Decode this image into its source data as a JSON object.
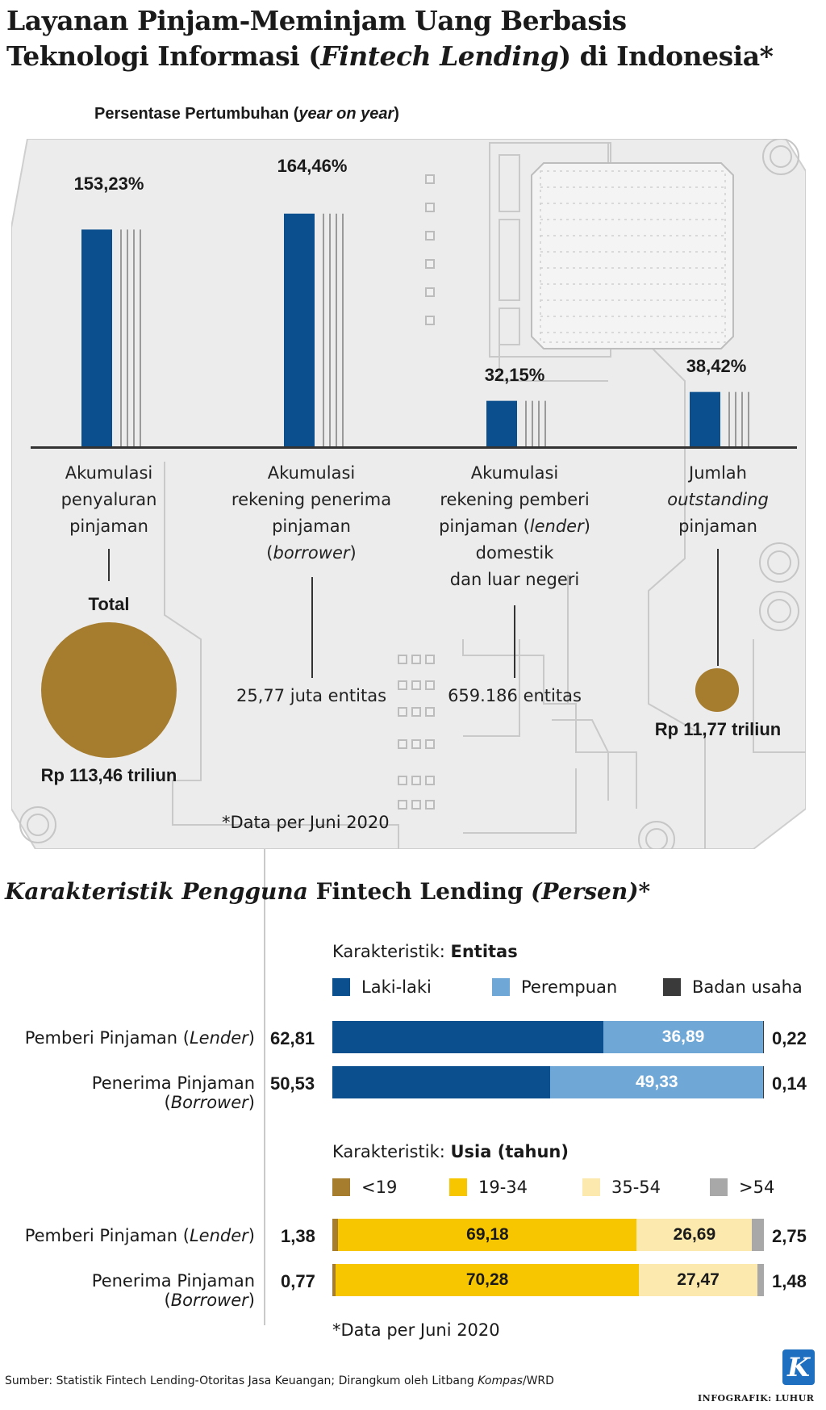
{
  "title": {
    "line1": "Layanan Pinjam-Meminjam Uang Berbasis",
    "line2_pre": "Teknologi Informasi (",
    "line2_italic": "Fintech Lending",
    "line2_post": ") di Indonesia*"
  },
  "chart_data": [
    {
      "type": "bar",
      "title": "Persentase Pertumbuhan (year on year)",
      "title_pre": "Persentase Pertumbuhan (",
      "title_italic": "year on year",
      "title_post": ")",
      "categories": [
        "Akumulasi penyaluran pinjaman",
        "Akumulasi rekening penerima pinjaman (borrower)",
        "Akumulasi rekening pemberi pinjaman (lender) domestik dan luar negeri",
        "Jumlah outstanding pinjaman"
      ],
      "values": [
        153.23,
        164.46,
        32.15,
        38.42
      ],
      "value_labels": [
        "153,23%",
        "164,46%",
        "32,15%",
        "38,42%"
      ],
      "ylim": [
        0,
        180
      ],
      "bar_color": "#0b4f8f"
    },
    {
      "type": "bar",
      "title": "Karakteristik: Entitas",
      "orientation": "horizontal-stacked",
      "categories": [
        "Pemberi Pinjaman (Lender)",
        "Penerima Pinjaman (Borrower)"
      ],
      "series": [
        {
          "name": "Laki-laki",
          "values": [
            62.81,
            50.53
          ],
          "labels": [
            "62,81",
            "50,53"
          ],
          "color": "#0b4f8f"
        },
        {
          "name": "Perempuan",
          "values": [
            36.89,
            49.33
          ],
          "labels": [
            "36,89",
            "49,33"
          ],
          "color": "#6fa7d6"
        },
        {
          "name": "Badan usaha",
          "values": [
            0.22,
            0.14
          ],
          "labels": [
            "0,22",
            "0,14"
          ],
          "color": "#3a3a3a"
        }
      ],
      "xlim": [
        0,
        100
      ]
    },
    {
      "type": "bar",
      "title": "Karakteristik: Usia (tahun)",
      "orientation": "horizontal-stacked",
      "categories": [
        "Pemberi Pinjaman (Lender)",
        "Penerima Pinjaman (Borrower)"
      ],
      "series": [
        {
          "name": "<19",
          "values": [
            1.38,
            0.77
          ],
          "labels": [
            "1,38",
            "0,77"
          ],
          "color": "#a67c2e"
        },
        {
          "name": "19-34",
          "values": [
            69.18,
            70.28
          ],
          "labels": [
            "69,18",
            "70,28"
          ],
          "color": "#f7c600"
        },
        {
          "name": "35-54",
          "values": [
            26.69,
            27.47
          ],
          "labels": [
            "26,69",
            "27,47"
          ],
          "color": "#fbe9ad"
        },
        {
          "name": ">54",
          "values": [
            2.75,
            1.48
          ],
          "labels": [
            "2,75",
            "1,48"
          ],
          "color": "#a8a8a8"
        }
      ],
      "xlim": [
        0,
        100
      ]
    }
  ],
  "growth": {
    "labels": [
      {
        "l1": "Akumulasi",
        "l2": "penyaluran",
        "l3": "pinjaman"
      },
      {
        "l1": "Akumulasi",
        "l2": "rekening penerima",
        "l3": "pinjaman",
        "l4_pre": "(",
        "l4_italic": "borrower",
        "l4_post": ")"
      },
      {
        "l1": "Akumulasi",
        "l2": "rekening pemberi",
        "l3_pre": "pinjaman (",
        "l3_italic": "lender",
        "l3_post": ")",
        "l4": "domestik",
        "l5": "dan luar negeri"
      },
      {
        "l1": "Jumlah",
        "l2_italic": "outstanding",
        "l3": "pinjaman"
      }
    ],
    "total_label": "Total",
    "total_value": "Rp 113,46 triliun",
    "borrower_value": "25,77 juta entitas",
    "lender_value": "659.186 entitas",
    "outstanding_value": "Rp 11,77 triliun",
    "outstanding_amount": 11.77,
    "total_amount": 113.46,
    "note": "*Data per Juni 2020"
  },
  "section": {
    "italic": "Karakteristik Pengguna",
    "mid": " Fintech Lending ",
    "italic2": "(Persen)",
    "post": "*"
  },
  "entitas": {
    "head_pre": "Karakteristik: ",
    "head_bold": "Entitas",
    "rows": [
      {
        "pre": "Pemberi Pinjaman (",
        "italic": "Lender",
        "post": ")"
      },
      {
        "pre": "Penerima Pinjaman (",
        "italic": "Borrower",
        "post": ")"
      }
    ]
  },
  "usia": {
    "head_pre": "Karakteristik: ",
    "head_bold": "Usia (tahun)",
    "rows": [
      {
        "pre": "Pemberi Pinjaman (",
        "italic": "Lender",
        "post": ")"
      },
      {
        "pre": "Penerima Pinjaman (",
        "italic": "Borrower",
        "post": ")"
      }
    ]
  },
  "footer": {
    "note": "*Data per Juni 2020",
    "source_pre": "Sumber: Statistik Fintech Lending-Otoritas Jasa Keuangan; Dirangkum oleh Litbang ",
    "source_italic": "Kompas",
    "source_post": "/WRD",
    "logo_letter": "K",
    "credit": "INFOGRAFIK: LUHUR"
  },
  "colors": {
    "board": "#ececec",
    "board_line": "#c9c9c9",
    "gold": "#a67c2e",
    "navy": "#0b4f8f"
  }
}
